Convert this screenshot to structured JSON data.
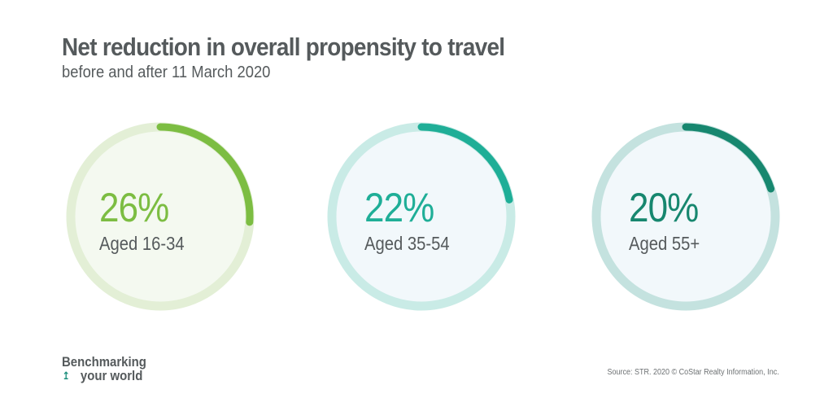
{
  "header": {
    "title": "Net reduction in overall propensity to travel",
    "subtitle": "before and after 11 March 2020"
  },
  "chart_data": {
    "type": "radial-progress",
    "title": "Net reduction in overall propensity to travel",
    "subtitle": "before and after 11 March 2020",
    "items": [
      {
        "value": 26,
        "display": "26%",
        "label": "Aged 16-34",
        "color": "#7cbd42",
        "track": "#e3efd6",
        "fill": "#f4f9f0"
      },
      {
        "value": 22,
        "display": "22%",
        "label": "Aged 35-54",
        "color": "#1fae97",
        "track": "#c9ebe6",
        "fill": "#f2f8fb"
      },
      {
        "value": 20,
        "display": "20%",
        "label": "Aged 55+",
        "color": "#17876f",
        "track": "#c4e2df",
        "fill": "#f2f8fb"
      }
    ]
  },
  "footer": {
    "logo_line1": "Benchmarking",
    "logo_line2": "your world",
    "logo_mark": "↥",
    "source": "Source: STR. 2020 © CoStar Realty Information, Inc."
  }
}
